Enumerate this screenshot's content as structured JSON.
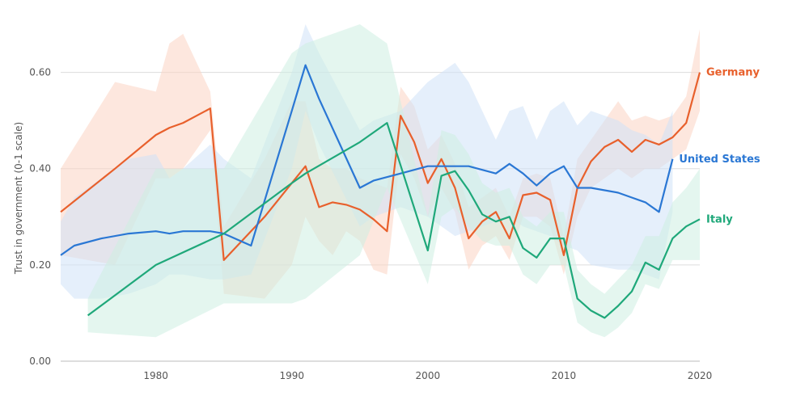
{
  "chart_data": {
    "type": "line",
    "title": "",
    "xlabel": "",
    "ylabel": "Trust in government (0-1 scale)",
    "xlim": [
      1973,
      2020
    ],
    "ylim": [
      0,
      0.7
    ],
    "x_ticks": [
      "1980",
      "1990",
      "2000",
      "2010",
      "2020"
    ],
    "x_tick_values": [
      1980,
      1990,
      2000,
      2010,
      2020
    ],
    "y_ticks": [
      "0.00",
      "0.20",
      "0.40",
      "0.60"
    ],
    "y_tick_values": [
      0,
      0.2,
      0.4,
      0.6
    ],
    "grid": true,
    "series": [
      {
        "name": "Germany",
        "color": "#e8602c",
        "band_color": "#fbd3c2",
        "points": [
          [
            1973,
            0.31
          ],
          [
            1977,
            0.4
          ],
          [
            1980,
            0.47
          ],
          [
            1981,
            0.485
          ],
          [
            1982,
            0.495
          ],
          [
            1984,
            0.525
          ],
          [
            1985,
            0.21
          ],
          [
            1988,
            0.3
          ],
          [
            1990,
            0.37
          ],
          [
            1991,
            0.405
          ],
          [
            1992,
            0.32
          ],
          [
            1993,
            0.33
          ],
          [
            1994,
            0.325
          ],
          [
            1995,
            0.315
          ],
          [
            1996,
            0.295
          ],
          [
            1997,
            0.27
          ],
          [
            1998,
            0.51
          ],
          [
            1999,
            0.455
          ],
          [
            2000,
            0.37
          ],
          [
            2001,
            0.42
          ],
          [
            2002,
            0.36
          ],
          [
            2003,
            0.255
          ],
          [
            2004,
            0.29
          ],
          [
            2005,
            0.31
          ],
          [
            2006,
            0.255
          ],
          [
            2007,
            0.345
          ],
          [
            2008,
            0.35
          ],
          [
            2009,
            0.335
          ],
          [
            2010,
            0.22
          ],
          [
            2011,
            0.36
          ],
          [
            2012,
            0.415
          ],
          [
            2013,
            0.445
          ],
          [
            2014,
            0.46
          ],
          [
            2015,
            0.435
          ],
          [
            2016,
            0.46
          ],
          [
            2017,
            0.45
          ],
          [
            2018,
            0.465
          ],
          [
            2019,
            0.495
          ],
          [
            2020,
            0.6
          ]
        ],
        "lower": [
          0.22,
          0.2,
          0.38,
          0.38,
          0.4,
          0.48,
          0.14,
          0.13,
          0.2,
          0.3,
          0.25,
          0.22,
          0.27,
          0.25,
          0.19,
          0.18,
          0.43,
          0.38,
          0.3,
          0.36,
          0.31,
          0.19,
          0.24,
          0.26,
          0.21,
          0.3,
          0.3,
          0.28,
          0.18,
          0.3,
          0.36,
          0.38,
          0.4,
          0.38,
          0.4,
          0.4,
          0.42,
          0.44,
          0.52
        ],
        "upper": [
          0.4,
          0.58,
          0.56,
          0.66,
          0.68,
          0.56,
          0.28,
          0.42,
          0.54,
          0.54,
          0.42,
          0.4,
          0.4,
          0.38,
          0.37,
          0.36,
          0.57,
          0.53,
          0.44,
          0.47,
          0.41,
          0.32,
          0.34,
          0.36,
          0.3,
          0.38,
          0.39,
          0.38,
          0.26,
          0.42,
          0.46,
          0.5,
          0.54,
          0.5,
          0.51,
          0.5,
          0.51,
          0.55,
          0.69
        ]
      },
      {
        "name": "United States",
        "color": "#2a77d4",
        "band_color": "#cfe1f7",
        "points": [
          [
            1973,
            0.22
          ],
          [
            1974,
            0.24
          ],
          [
            1976,
            0.255
          ],
          [
            1978,
            0.265
          ],
          [
            1980,
            0.27
          ],
          [
            1981,
            0.265
          ],
          [
            1982,
            0.27
          ],
          [
            1984,
            0.27
          ],
          [
            1985,
            0.265
          ],
          [
            1987,
            0.24
          ],
          [
            1990,
            0.52
          ],
          [
            1991,
            0.615
          ],
          [
            1992,
            0.545
          ],
          [
            1995,
            0.36
          ],
          [
            1996,
            0.375
          ],
          [
            1998,
            0.39
          ],
          [
            2000,
            0.405
          ],
          [
            2002,
            0.405
          ],
          [
            2003,
            0.405
          ],
          [
            2005,
            0.39
          ],
          [
            2006,
            0.41
          ],
          [
            2007,
            0.39
          ],
          [
            2008,
            0.365
          ],
          [
            2009,
            0.39
          ],
          [
            2010,
            0.405
          ],
          [
            2011,
            0.36
          ],
          [
            2012,
            0.36
          ],
          [
            2014,
            0.35
          ],
          [
            2015,
            0.34
          ],
          [
            2016,
            0.33
          ],
          [
            2017,
            0.31
          ],
          [
            2018,
            0.42
          ]
        ],
        "lower": [
          0.16,
          0.13,
          0.13,
          0.14,
          0.16,
          0.18,
          0.18,
          0.17,
          0.17,
          0.18,
          0.4,
          0.52,
          0.45,
          0.28,
          0.3,
          0.32,
          0.3,
          0.26,
          0.27,
          0.29,
          0.3,
          0.28,
          0.27,
          0.26,
          0.24,
          0.23,
          0.2,
          0.19,
          0.19,
          0.18,
          0.17,
          0.31
        ],
        "upper": [
          0.29,
          0.34,
          0.38,
          0.42,
          0.43,
          0.38,
          0.4,
          0.45,
          0.42,
          0.38,
          0.6,
          0.7,
          0.64,
          0.48,
          0.5,
          0.52,
          0.58,
          0.62,
          0.58,
          0.46,
          0.52,
          0.53,
          0.46,
          0.52,
          0.54,
          0.49,
          0.52,
          0.5,
          0.48,
          0.47,
          0.45,
          0.52
        ]
      },
      {
        "name": "Italy",
        "color": "#1fa87a",
        "band_color": "#cdeee1",
        "points": [
          [
            1975,
            0.095
          ],
          [
            1980,
            0.2
          ],
          [
            1985,
            0.265
          ],
          [
            1990,
            0.37
          ],
          [
            1991,
            0.39
          ],
          [
            1995,
            0.455
          ],
          [
            1997,
            0.495
          ],
          [
            2000,
            0.23
          ],
          [
            2001,
            0.385
          ],
          [
            2002,
            0.395
          ],
          [
            2003,
            0.355
          ],
          [
            2004,
            0.305
          ],
          [
            2005,
            0.29
          ],
          [
            2006,
            0.3
          ],
          [
            2007,
            0.235
          ],
          [
            2008,
            0.215
          ],
          [
            2009,
            0.255
          ],
          [
            2010,
            0.255
          ],
          [
            2011,
            0.13
          ],
          [
            2012,
            0.105
          ],
          [
            2013,
            0.09
          ],
          [
            2014,
            0.115
          ],
          [
            2015,
            0.145
          ],
          [
            2016,
            0.205
          ],
          [
            2017,
            0.19
          ],
          [
            2018,
            0.255
          ],
          [
            2019,
            0.28
          ],
          [
            2020,
            0.295
          ]
        ],
        "lower": [
          0.06,
          0.05,
          0.12,
          0.12,
          0.13,
          0.22,
          0.36,
          0.16,
          0.3,
          0.32,
          0.28,
          0.25,
          0.24,
          0.24,
          0.18,
          0.16,
          0.2,
          0.2,
          0.08,
          0.06,
          0.05,
          0.07,
          0.1,
          0.16,
          0.15,
          0.21,
          0.21,
          0.21
        ],
        "upper": [
          0.13,
          0.4,
          0.4,
          0.64,
          0.66,
          0.7,
          0.66,
          0.3,
          0.48,
          0.47,
          0.43,
          0.37,
          0.35,
          0.36,
          0.3,
          0.28,
          0.31,
          0.31,
          0.19,
          0.16,
          0.14,
          0.17,
          0.2,
          0.26,
          0.26,
          0.33,
          0.36,
          0.4
        ]
      }
    ]
  }
}
